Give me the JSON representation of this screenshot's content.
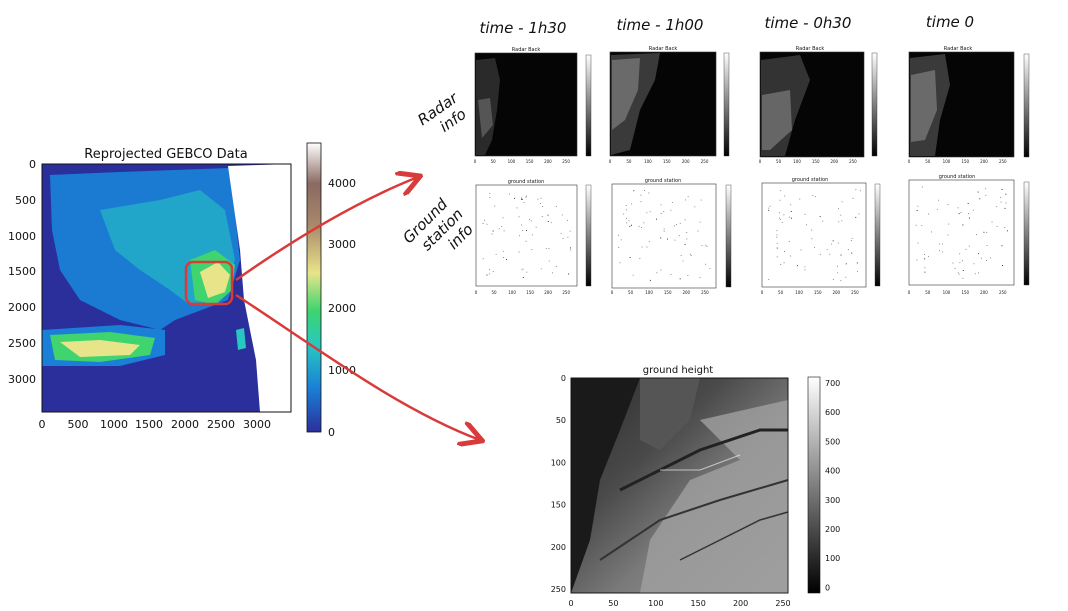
{
  "main_plot": {
    "title": "Reprojected GEBCO Data",
    "x_ticks": [
      "0",
      "500",
      "1000",
      "1500",
      "2000",
      "2500",
      "3000"
    ],
    "y_ticks": [
      "0",
      "500",
      "1000",
      "1500",
      "2000",
      "2500",
      "3000"
    ],
    "colorbar_ticks": [
      "4000",
      "3000",
      "2000",
      "1000",
      "0"
    ],
    "colors": {
      "ocean": "#2b2f9c",
      "low": "#1a7fd6",
      "mid": "#3fd46e",
      "high": "#e8e48a",
      "peak": "#ffffff",
      "highlight": "#d93a3a"
    }
  },
  "column_labels": [
    "time - 1h30",
    "time - 1h00",
    "time - 0h30",
    "time 0"
  ],
  "row_labels": {
    "radar_line1": "Radar",
    "radar_line2": "info",
    "ground_line1": "Ground",
    "ground_line2": "station",
    "ground_line3": "info"
  },
  "radar_plots": [
    {
      "title": "Radar Back"
    },
    {
      "title": "Radar Back"
    },
    {
      "title": "Radar Back"
    },
    {
      "title": "Radar Back"
    }
  ],
  "station_plots": [
    {
      "title": "ground station"
    },
    {
      "title": "ground station"
    },
    {
      "title": "ground station"
    },
    {
      "title": "ground station"
    }
  ],
  "small_ticks": [
    "0",
    "50",
    "100",
    "150",
    "200",
    "250"
  ],
  "ground_height": {
    "title": "ground height",
    "x_ticks": [
      "0",
      "50",
      "100",
      "150",
      "200",
      "250"
    ],
    "y_ticks": [
      "0",
      "50",
      "100",
      "150",
      "200",
      "250"
    ],
    "colorbar_ticks": [
      "700",
      "600",
      "500",
      "400",
      "300",
      "200",
      "100",
      "0"
    ]
  }
}
